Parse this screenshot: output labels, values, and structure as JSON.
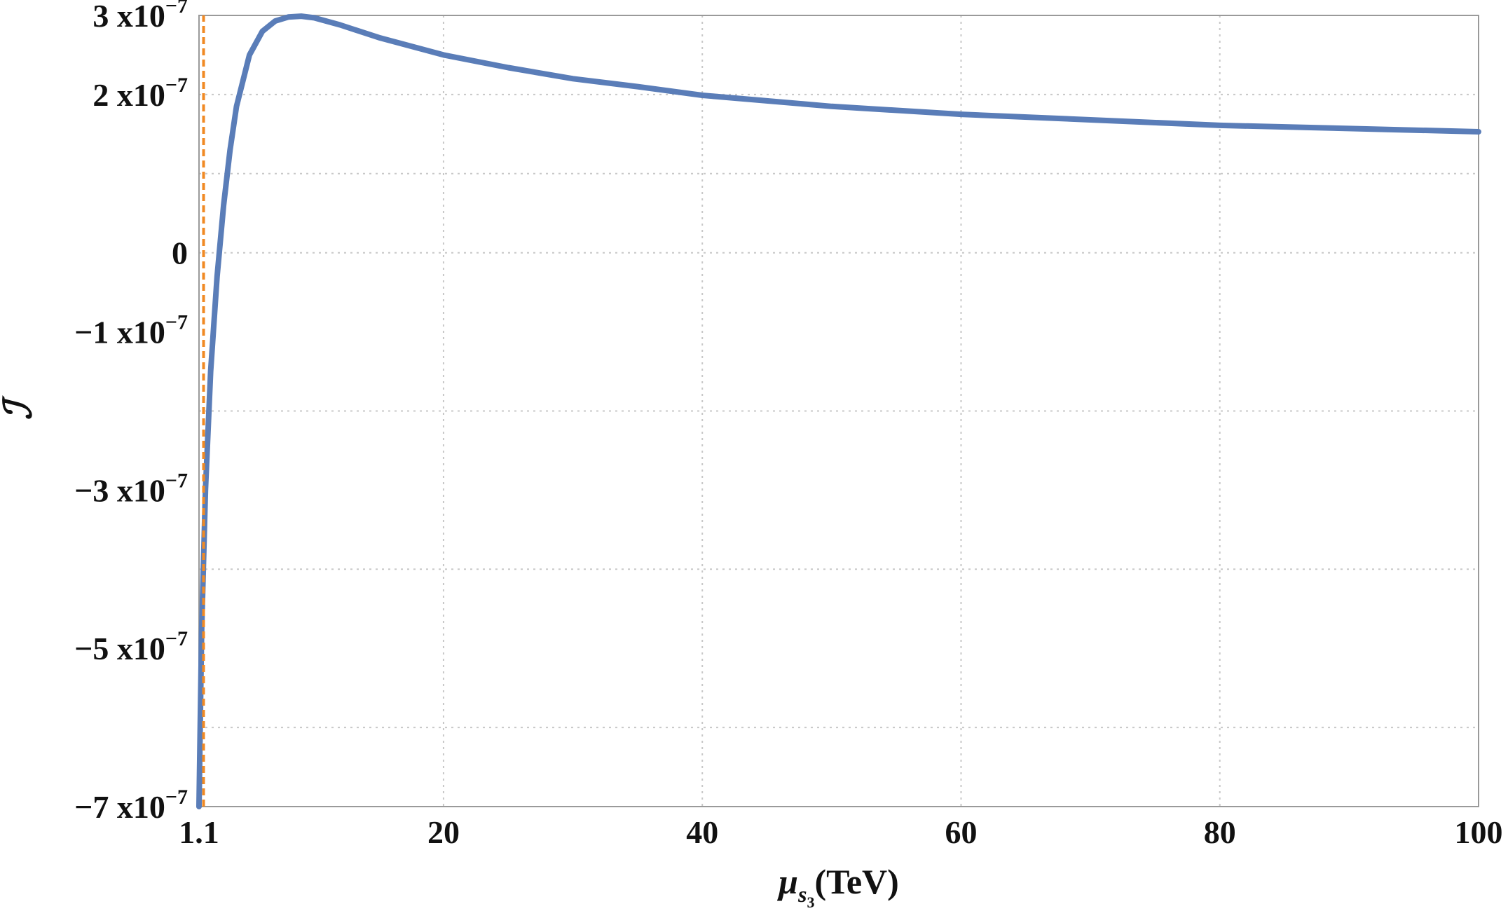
{
  "chart_data": {
    "type": "line",
    "xlabel": {
      "symbol": "μ",
      "subscript": "s",
      "subsubscript": "3",
      "unit": "(TeV)"
    },
    "ylabel": "ℐ",
    "xlim": [
      1.1,
      100
    ],
    "ylim": [
      -7e-07,
      3e-07
    ],
    "x_ticks": [
      {
        "value": 1.1,
        "label": "1.1"
      },
      {
        "value": 20,
        "label": "20"
      },
      {
        "value": 40,
        "label": "40"
      },
      {
        "value": 60,
        "label": "60"
      },
      {
        "value": 80,
        "label": "80"
      },
      {
        "value": 100,
        "label": "100"
      }
    ],
    "y_ticks": [
      {
        "value": 3e-07,
        "mantissa": "3",
        "base": "x10",
        "exp": "−7"
      },
      {
        "value": 2e-07,
        "mantissa": "2",
        "base": "x10",
        "exp": "−7"
      },
      {
        "value": 0,
        "mantissa": "0",
        "base": "",
        "exp": ""
      },
      {
        "value": -1e-07,
        "mantissa": "−1",
        "base": "x10",
        "exp": "−7"
      },
      {
        "value": -3e-07,
        "mantissa": "−3",
        "base": "x10",
        "exp": "−7"
      },
      {
        "value": -5e-07,
        "mantissa": "−5",
        "base": "x10",
        "exp": "−7"
      },
      {
        "value": -7e-07,
        "mantissa": "−7",
        "base": "x10",
        "exp": "−7"
      }
    ],
    "x_grid": [
      1.1,
      20,
      40,
      60,
      80,
      100
    ],
    "y_grid": [
      3e-07,
      2e-07,
      1e-07,
      0,
      -2e-07,
      -4e-07,
      -6e-07
    ],
    "grid": true,
    "series": [
      {
        "style": "solid",
        "color": "#5a7db8",
        "points": [
          [
            1.1,
            -7e-07
          ],
          [
            1.3,
            -4.8e-07
          ],
          [
            1.6,
            -3e-07
          ],
          [
            2.0,
            -1.5e-07
          ],
          [
            2.5,
            -3e-08
          ],
          [
            3.0,
            6e-08
          ],
          [
            3.5,
            1.3e-07
          ],
          [
            4.0,
            1.85e-07
          ],
          [
            5.0,
            2.5e-07
          ],
          [
            6.0,
            2.8e-07
          ],
          [
            7.0,
            2.93e-07
          ],
          [
            8.0,
            2.98e-07
          ],
          [
            9.0,
            2.99e-07
          ],
          [
            10.0,
            2.97e-07
          ],
          [
            12.0,
            2.88e-07
          ],
          [
            15.0,
            2.72e-07
          ],
          [
            20.0,
            2.5e-07
          ],
          [
            25.0,
            2.34e-07
          ],
          [
            30.0,
            2.2e-07
          ],
          [
            35.0,
            2.1e-07
          ],
          [
            40.0,
            1.99e-07
          ],
          [
            50.0,
            1.85e-07
          ],
          [
            60.0,
            1.75e-07
          ],
          [
            70.0,
            1.68e-07
          ],
          [
            80.0,
            1.61e-07
          ],
          [
            90.0,
            1.57e-07
          ],
          [
            100.0,
            1.53e-07
          ]
        ]
      },
      {
        "style": "dashed",
        "color": "#f08a24",
        "points": [
          [
            1.45,
            -7e-07
          ],
          [
            1.45,
            3e-07
          ]
        ]
      }
    ]
  }
}
